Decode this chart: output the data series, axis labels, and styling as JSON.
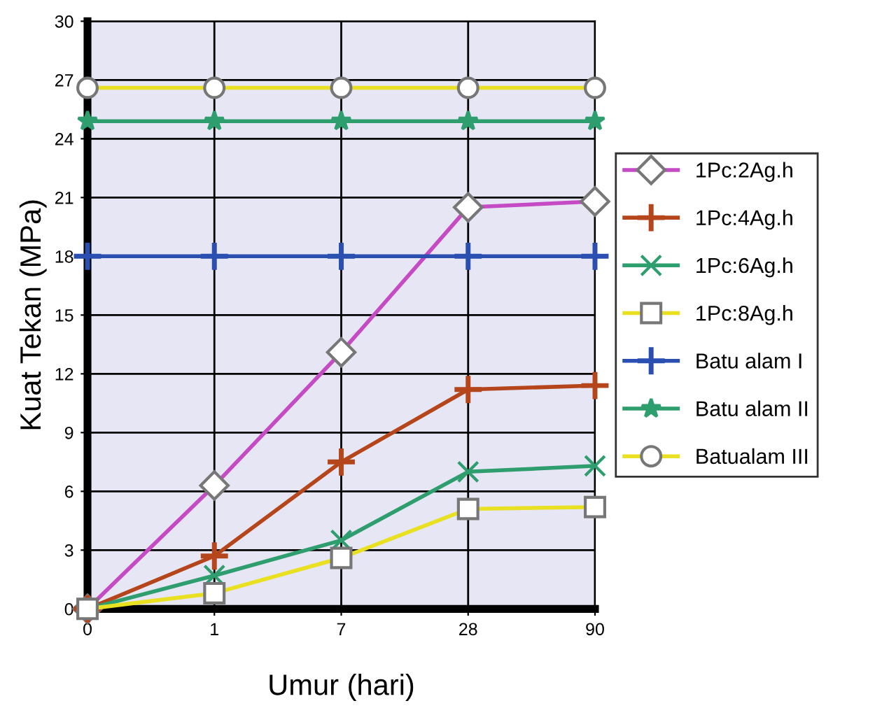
{
  "chart_data": {
    "type": "line",
    "xlabel": "Umur (hari)",
    "ylabel": "Kuat Tekan (MPa)",
    "categories": [
      "0",
      "1",
      "7",
      "28",
      "90"
    ],
    "ylim": [
      0,
      30
    ],
    "yticks": [
      0,
      3,
      6,
      9,
      12,
      15,
      18,
      21,
      24,
      27,
      30
    ],
    "grid": true,
    "legend": "right",
    "series": [
      {
        "name": "1Pc:2Ag.h",
        "color": "#c44bc4",
        "marker": "diamond",
        "values": [
          0,
          6.3,
          13.1,
          20.5,
          20.8
        ]
      },
      {
        "name": "1Pc:4Ag.h",
        "color": "#b5451b",
        "marker": "plus",
        "values": [
          0,
          2.7,
          7.5,
          11.2,
          11.4
        ]
      },
      {
        "name": "1Pc:6Ag.h",
        "color": "#2e9e6e",
        "marker": "cross",
        "values": [
          0,
          1.7,
          3.5,
          7.0,
          7.3
        ]
      },
      {
        "name": "1Pc:8Ag.h",
        "color": "#e8e020",
        "marker": "square",
        "values": [
          0,
          0.8,
          2.6,
          5.1,
          5.2
        ]
      },
      {
        "name": "Batu alam I",
        "color": "#2a4fb0",
        "marker": "plus",
        "values": [
          18,
          18,
          18,
          18,
          18
        ]
      },
      {
        "name": "Batu alam II",
        "color": "#2e9e6e",
        "marker": "star",
        "values": [
          24.9,
          24.9,
          24.9,
          24.9,
          24.9
        ]
      },
      {
        "name": "Batualam III",
        "color": "#e8e020",
        "marker": "circle",
        "values": [
          26.6,
          26.6,
          26.6,
          26.6,
          26.6
        ]
      }
    ]
  }
}
